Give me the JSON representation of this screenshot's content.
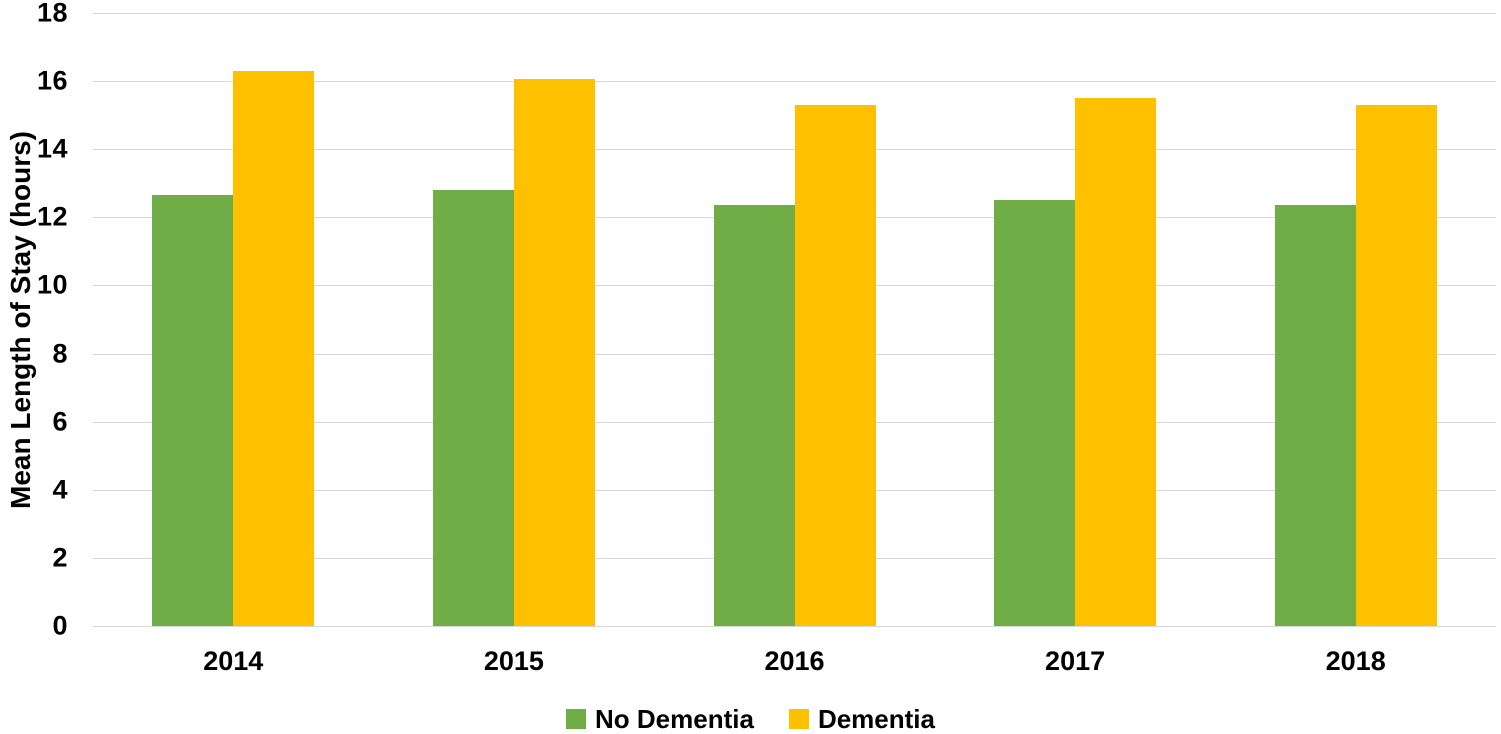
{
  "chart_data": {
    "type": "bar",
    "title": "",
    "xlabel": "",
    "ylabel": "Mean Length of Stay (hours)",
    "categories": [
      "2014",
      "2015",
      "2016",
      "2017",
      "2018"
    ],
    "series": [
      {
        "name": "No Dementia",
        "color": "#70AD47",
        "values": [
          12.65,
          12.8,
          12.35,
          12.5,
          12.35
        ]
      },
      {
        "name": "Dementia",
        "color": "#FFC000",
        "values": [
          16.3,
          16.05,
          15.3,
          15.5,
          15.3
        ]
      }
    ],
    "ylim": [
      0,
      18
    ],
    "ytick_step": 2,
    "ytick_labels": [
      "0",
      "2",
      "4",
      "6",
      "8",
      "10",
      "12",
      "14",
      "16",
      "18"
    ],
    "grid": true,
    "legend_position": "bottom",
    "colors": {
      "gridline": "#D9D9D9",
      "axis_line": "#D9D9D9",
      "text": "#000000",
      "background": "#FFFFFF"
    }
  }
}
